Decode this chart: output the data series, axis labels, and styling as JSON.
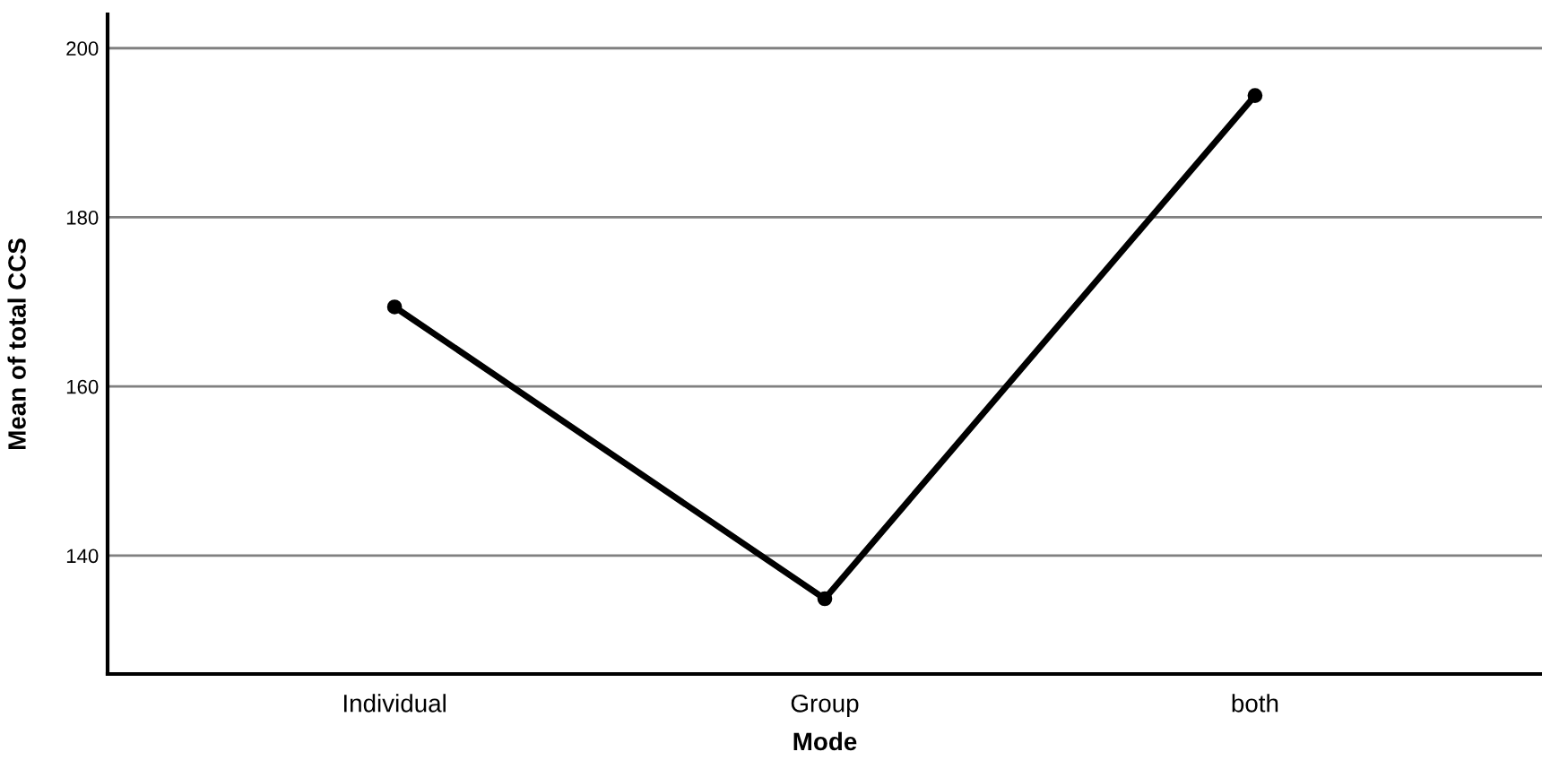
{
  "chart_data": {
    "type": "line",
    "xlabel": "Mode",
    "ylabel": "Mean of total CCS",
    "categories": [
      "Individual",
      "Group",
      "both"
    ],
    "series": [
      {
        "color": "#000000",
        "values": [
          169.4,
          134.9,
          194.4
        ]
      }
    ],
    "ylim": [
      126,
      204
    ],
    "yticks": [
      140,
      160,
      180,
      200
    ],
    "grid": "y",
    "marker": "circle",
    "line_style": "solid"
  }
}
